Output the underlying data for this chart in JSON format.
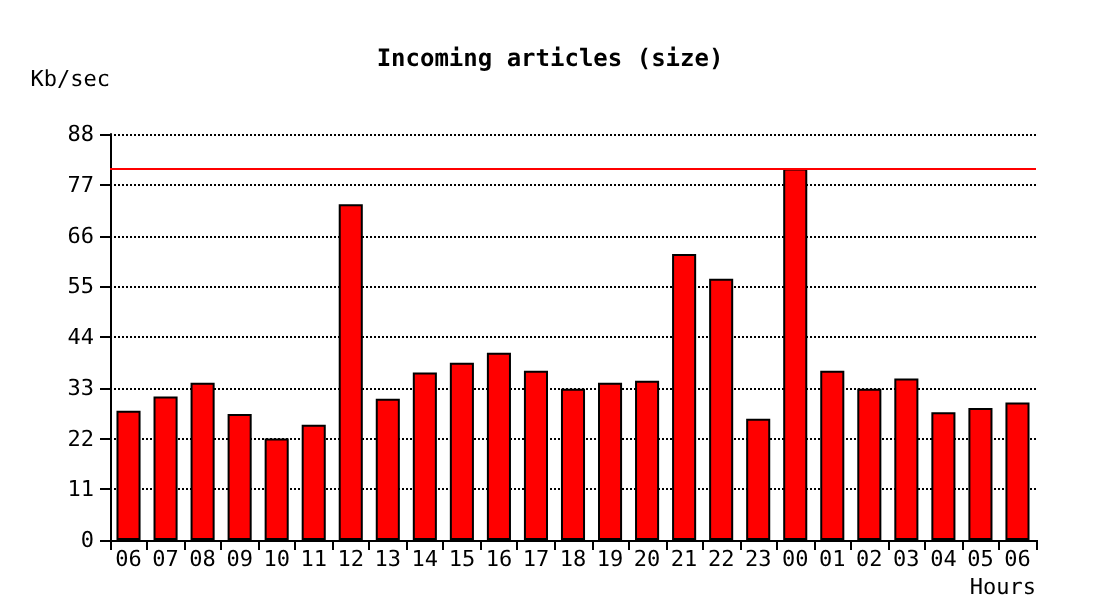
{
  "chart_data": {
    "type": "bar",
    "title": "Incoming articles (size)",
    "ylabel": "Kb/sec",
    "xlabel": "Hours",
    "categories": [
      "06",
      "07",
      "08",
      "09",
      "10",
      "11",
      "12",
      "13",
      "14",
      "15",
      "16",
      "17",
      "18",
      "19",
      "20",
      "21",
      "22",
      "23",
      "00",
      "01",
      "02",
      "03",
      "04",
      "05",
      "06"
    ],
    "series": [
      {
        "color": "#ff0000",
        "values": [
          28.0,
          31.1,
          34.1,
          27.3,
          22.0,
          25.0,
          72.8,
          30.6,
          36.3,
          38.4,
          40.6,
          36.7,
          32.8,
          34.1,
          34.5,
          62.0,
          56.6,
          26.3,
          80.5,
          36.7,
          32.8,
          35.0,
          27.7,
          28.6,
          29.8
        ]
      }
    ],
    "ylim": [
      0,
      88
    ],
    "yticks": [
      0,
      11,
      22,
      33,
      44,
      55,
      66,
      77,
      88
    ],
    "grid": "y",
    "ref_lines": [
      {
        "axis": "y",
        "value": 80.5,
        "color": "#ff0000"
      }
    ]
  }
}
